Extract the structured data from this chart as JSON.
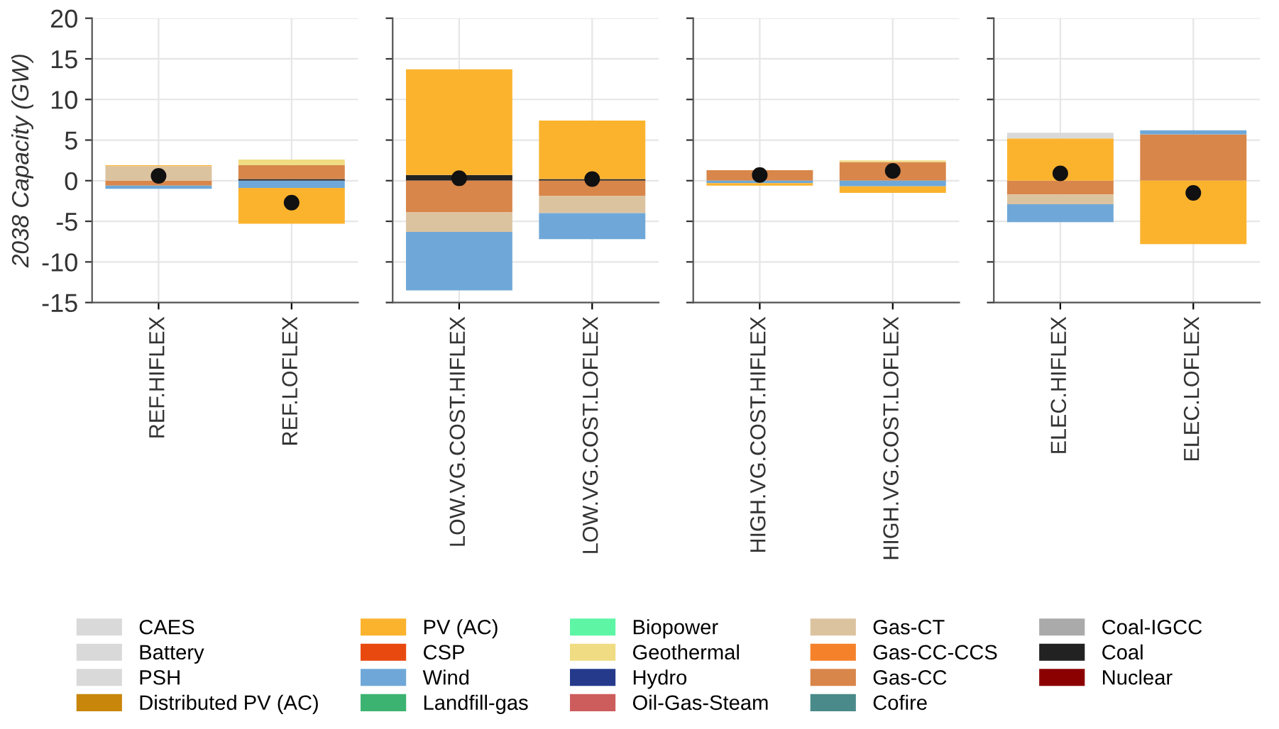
{
  "chart_data": [
    {
      "type": "bar",
      "stacked": true,
      "ylabel": "2038 Capacity (GW)",
      "categories": [
        "REF.HIFLEX",
        "REF.LOFLEX"
      ],
      "ylim": [
        -15,
        20
      ],
      "yticks": [
        -15,
        -10,
        -5,
        0,
        5,
        10,
        15,
        20
      ],
      "grid": true,
      "legend": "bottom",
      "series": [
        {
          "name": "Nuclear",
          "color": "#8b0000",
          "values": [
            null,
            null
          ]
        },
        {
          "name": "Coal",
          "color": "#222222",
          "values": [
            null,
            0.2
          ]
        },
        {
          "name": "Coal-IGCC",
          "color": "#aaaaaa",
          "values": [
            null,
            null
          ]
        },
        {
          "name": "Cofire",
          "color": "#4a8a8a",
          "values": [
            null,
            null
          ]
        },
        {
          "name": "Gas-CC",
          "color": "#d8864a",
          "values": [
            -0.6,
            1.7
          ]
        },
        {
          "name": "Gas-CC-CCS",
          "color": "#f5822a",
          "values": [
            null,
            null
          ]
        },
        {
          "name": "Gas-CT",
          "color": "#dcc3a0",
          "values": [
            1.8,
            null
          ]
        },
        {
          "name": "Oil-Gas-Steam",
          "color": "#cd5c5c",
          "values": [
            null,
            null
          ]
        },
        {
          "name": "Hydro",
          "color": "#263a8c",
          "values": [
            null,
            null
          ]
        },
        {
          "name": "Geothermal",
          "color": "#f0dc82",
          "values": [
            null,
            0.7
          ]
        },
        {
          "name": "Biopower",
          "color": "#5ef5a5",
          "values": [
            null,
            null
          ]
        },
        {
          "name": "Landfill-gas",
          "color": "#3cb371",
          "values": [
            null,
            null
          ]
        },
        {
          "name": "Wind",
          "color": "#6fa8d8",
          "values": [
            -0.4,
            -0.9
          ]
        },
        {
          "name": "CSP",
          "color": "#e8490f",
          "values": [
            null,
            null
          ]
        },
        {
          "name": "PV (AC)",
          "color": "#fbb32e",
          "values": [
            0.1,
            -4.4
          ]
        },
        {
          "name": "Distributed PV (AC)",
          "color": "#c8860a",
          "values": [
            null,
            null
          ]
        },
        {
          "name": "PSH",
          "color": "#d9d9d9",
          "values": [
            null,
            null
          ]
        },
        {
          "name": "Battery",
          "color": "#d9d9d9",
          "values": [
            null,
            null
          ]
        },
        {
          "name": "CAES",
          "color": "#d9d9d9",
          "values": [
            null,
            null
          ]
        },
        {
          "type": "scatter",
          "color": "#111111",
          "marker": "circle",
          "values": [
            0.6,
            -2.7
          ]
        }
      ]
    },
    {
      "type": "bar",
      "stacked": true,
      "categories": [
        "LOW.VG.COST.HIFLEX",
        "LOW.VG.COST.LOFLEX"
      ],
      "ylim": [
        -15,
        20
      ],
      "yticks": [
        -15,
        -10,
        -5,
        0,
        5,
        10,
        15,
        20
      ],
      "tick_labels": "x",
      "grid": true,
      "series": [
        {
          "color": "#222222",
          "values": [
            0.7,
            0.2
          ]
        },
        {
          "color": "#d8864a",
          "values": [
            -3.9,
            -1.9
          ]
        },
        {
          "color": "#dcc3a0",
          "values": [
            -2.4,
            -2.1
          ]
        },
        {
          "color": "#6fa8d8",
          "values": [
            -7.2,
            -3.2
          ]
        },
        {
          "color": "#fbb32e",
          "values": [
            13.0,
            7.2
          ]
        },
        {
          "type": "scatter",
          "color": "#111111",
          "marker": "circle",
          "values": [
            0.3,
            0.2
          ]
        }
      ]
    },
    {
      "type": "bar",
      "stacked": true,
      "categories": [
        "HIGH.VG.COST.HIFLEX",
        "HIGH.VG.COST.LOFLEX"
      ],
      "ylim": [
        -15,
        20
      ],
      "yticks": [
        -15,
        -10,
        -5,
        0,
        5,
        10,
        15,
        20
      ],
      "tick_labels": "x",
      "grid": true,
      "series": [
        {
          "color": "#d8864a",
          "values": [
            1.3,
            2.3
          ]
        },
        {
          "color": "#f0dc82",
          "values": [
            null,
            0.2
          ]
        },
        {
          "color": "#6fa8d8",
          "values": [
            -0.3,
            -0.7
          ]
        },
        {
          "color": "#fbb32e",
          "values": [
            -0.3,
            -0.8
          ]
        },
        {
          "type": "scatter",
          "color": "#111111",
          "marker": "circle",
          "values": [
            0.7,
            1.2
          ]
        }
      ]
    },
    {
      "type": "bar",
      "stacked": true,
      "categories": [
        "ELEC.HIFLEX",
        "ELEC.LOFLEX"
      ],
      "ylim": [
        -15,
        20
      ],
      "yticks": [
        -15,
        -10,
        -5,
        0,
        5,
        10,
        15,
        20
      ],
      "tick_labels": "x",
      "grid": true,
      "series": [
        {
          "color": "#d8864a",
          "values": [
            -1.7,
            5.7
          ]
        },
        {
          "color": "#dcc3a0",
          "values": [
            -1.2,
            null
          ]
        },
        {
          "color": "#6fa8d8",
          "values": [
            -2.2,
            0.5
          ]
        },
        {
          "color": "#fbb32e",
          "values": [
            5.2,
            -7.8
          ]
        },
        {
          "color": "#d9d9d9",
          "values": [
            0.7,
            null
          ]
        },
        {
          "type": "scatter",
          "color": "#111111",
          "marker": "circle",
          "values": [
            0.9,
            -1.5
          ]
        }
      ]
    }
  ]
}
